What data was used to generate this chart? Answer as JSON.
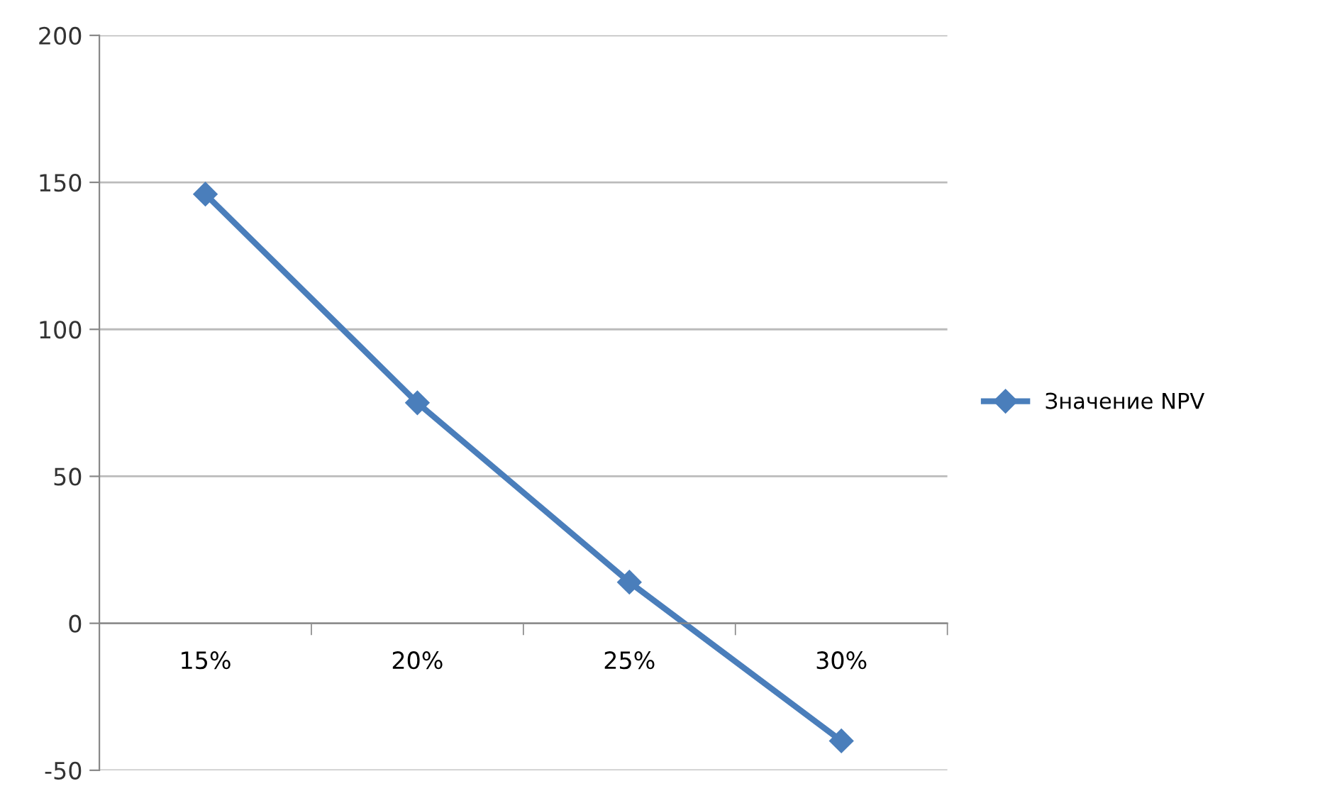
{
  "chart_data": {
    "type": "line",
    "categories": [
      "15%",
      "20%",
      "25%",
      "30%"
    ],
    "series": [
      {
        "name": "Значение NPV",
        "color": "#4a7ebb",
        "values": [
          146,
          75,
          14,
          -40
        ]
      }
    ],
    "ylim": [
      -50,
      200
    ],
    "yticks": [
      -50,
      0,
      50,
      100,
      150,
      200
    ],
    "grid": "y",
    "legend": "right",
    "marker": "diamond",
    "line_style": "solid"
  }
}
